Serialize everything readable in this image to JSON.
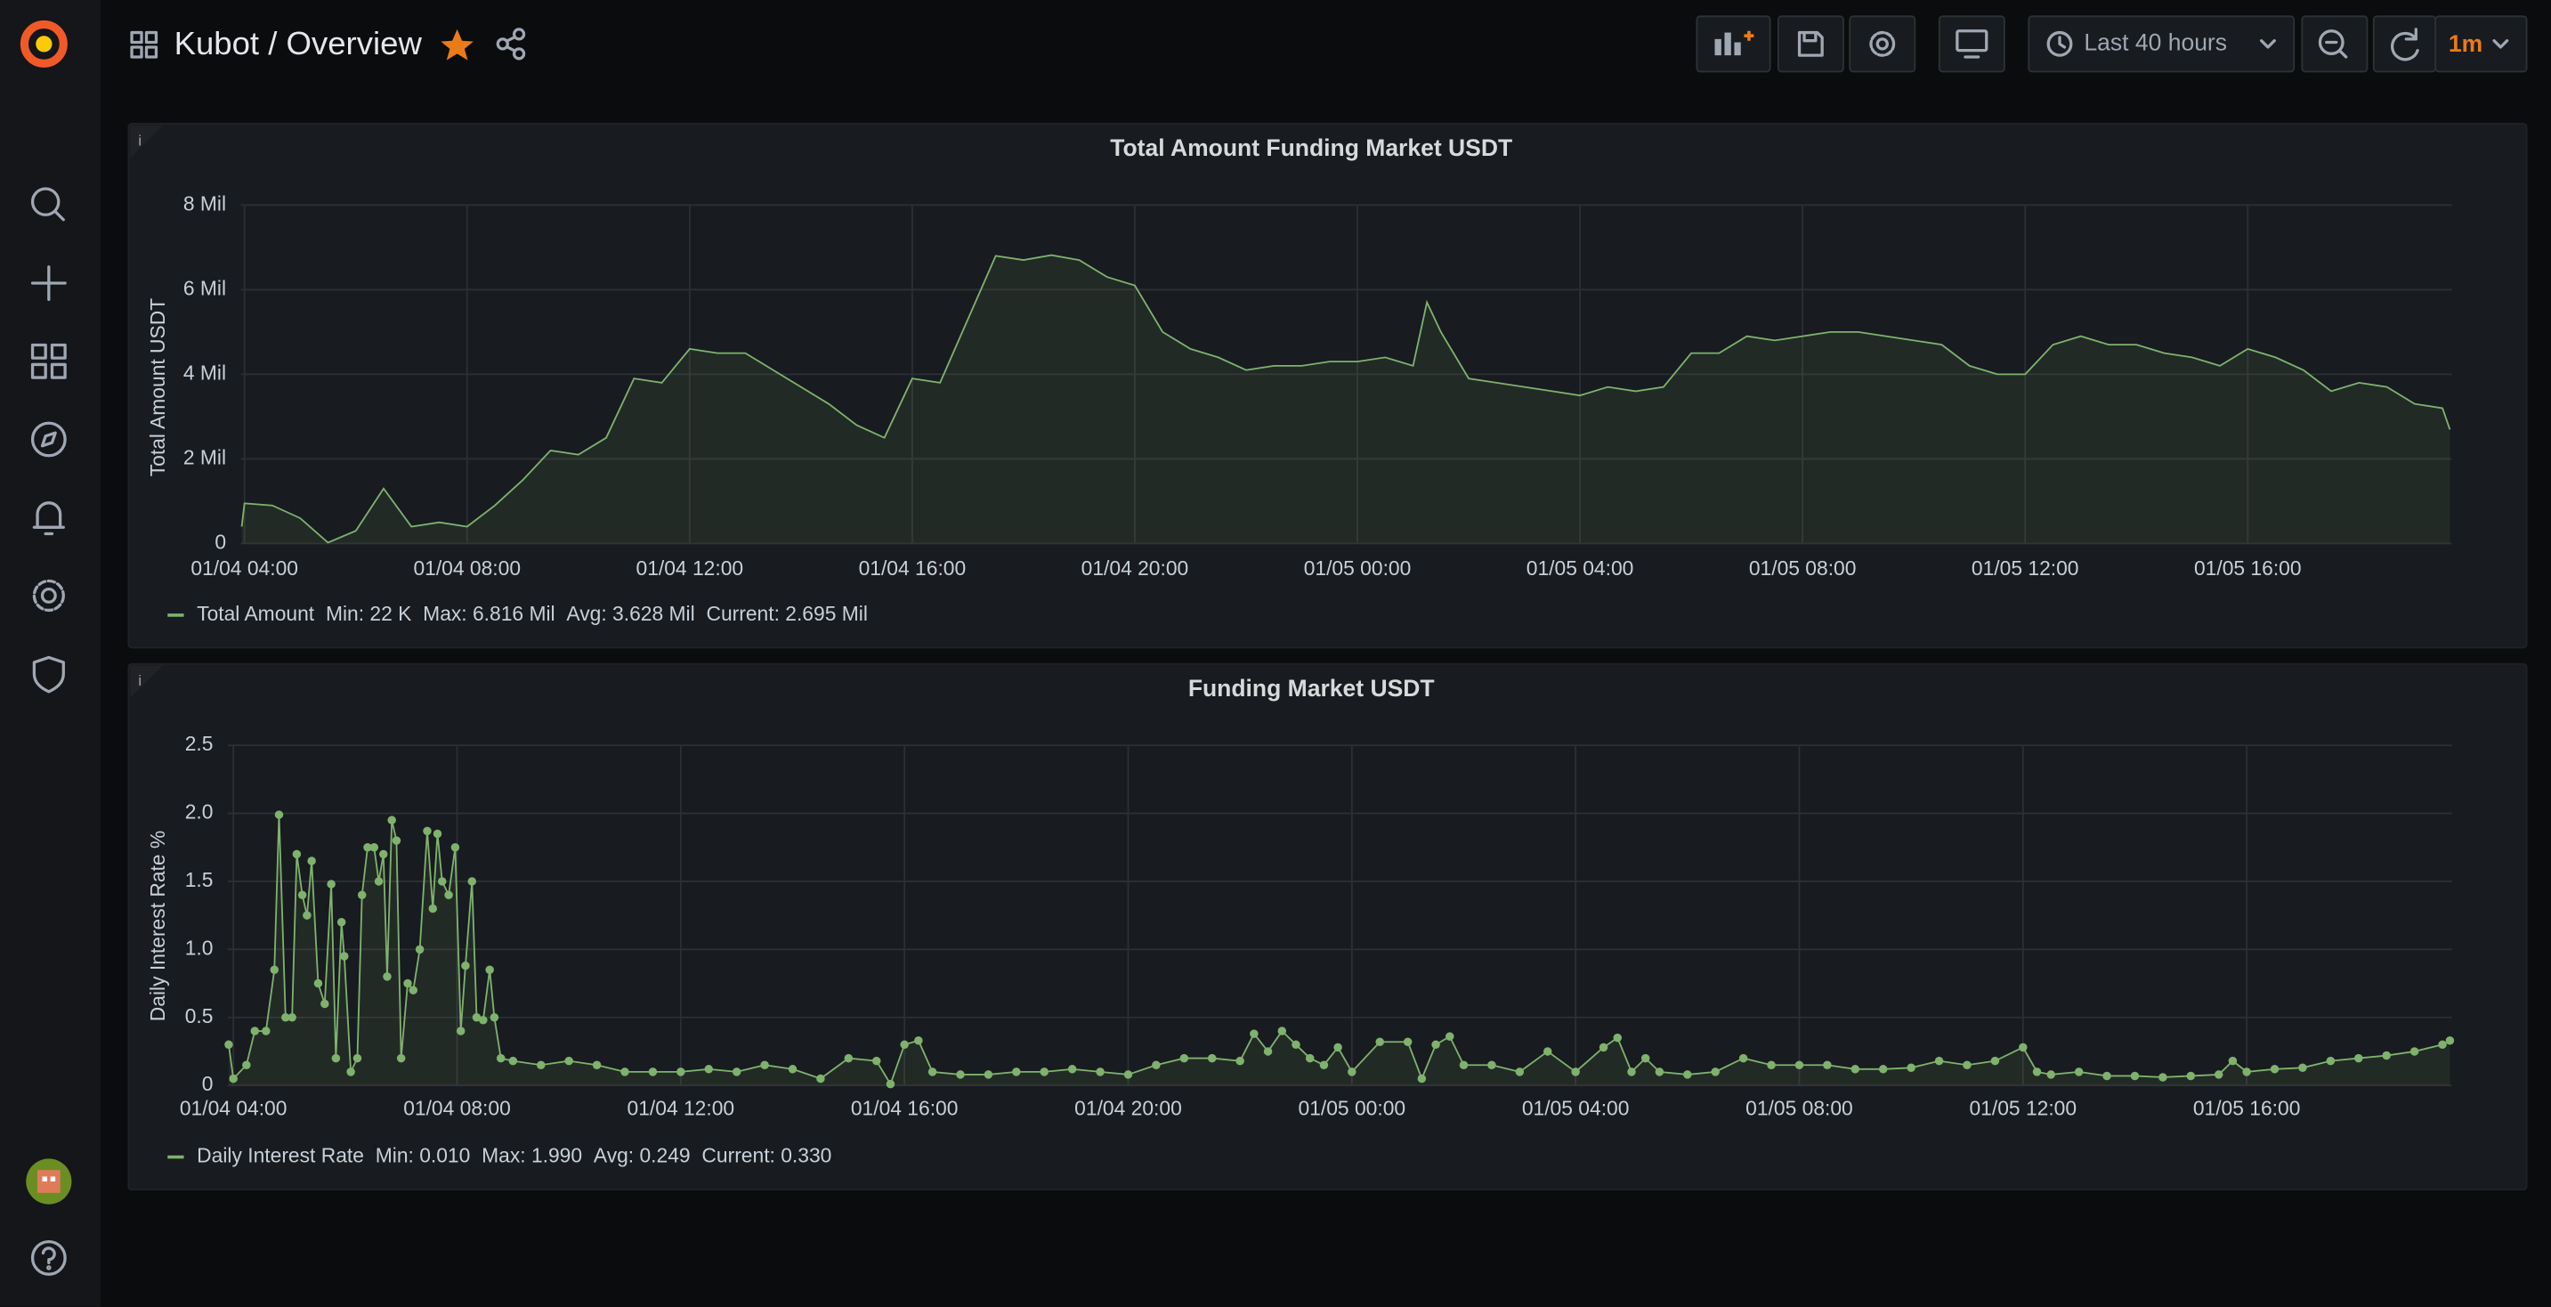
{
  "header": {
    "title": "Kubot / Overview",
    "time_range": "Last 40 hours",
    "refresh": "1m"
  },
  "chart_data": [
    {
      "type": "line",
      "title": "Total Amount Funding Market USDT",
      "y_label": "Total Amount USDT",
      "x": [
        "01/04 03:57",
        "01/04 04:00",
        "01/04 04:30",
        "01/04 05:00",
        "01/04 05:30",
        "01/04 06:00",
        "01/04 06:30",
        "01/04 07:00",
        "01/04 07:30",
        "01/04 08:00",
        "01/04 08:30",
        "01/04 09:00",
        "01/04 09:30",
        "01/04 10:00",
        "01/04 10:30",
        "01/04 11:00",
        "01/04 11:30",
        "01/04 12:00",
        "01/04 12:30",
        "01/04 13:00",
        "01/04 13:30",
        "01/04 14:00",
        "01/04 14:30",
        "01/04 15:00",
        "01/04 15:30",
        "01/04 16:00",
        "01/04 16:30",
        "01/04 17:00",
        "01/04 17:30",
        "01/04 18:00",
        "01/04 18:30",
        "01/04 19:00",
        "01/04 19:30",
        "01/04 20:00",
        "01/04 20:30",
        "01/04 21:00",
        "01/04 21:30",
        "01/04 22:00",
        "01/04 22:30",
        "01/04 23:00",
        "01/04 23:30",
        "01/05 00:00",
        "01/05 00:30",
        "01/05 01:00",
        "01/05 01:15",
        "01/05 01:30",
        "01/05 02:00",
        "01/05 02:30",
        "01/05 03:00",
        "01/05 03:30",
        "01/05 04:00",
        "01/05 04:30",
        "01/05 05:00",
        "01/05 05:30",
        "01/05 06:00",
        "01/05 06:30",
        "01/05 07:00",
        "01/05 07:30",
        "01/05 08:00",
        "01/05 08:30",
        "01/05 09:00",
        "01/05 09:30",
        "01/05 10:00",
        "01/05 10:30",
        "01/05 11:00",
        "01/05 11:30",
        "01/05 12:00",
        "01/05 12:30",
        "01/05 13:00",
        "01/05 13:30",
        "01/05 14:00",
        "01/05 14:30",
        "01/05 15:00",
        "01/05 15:30",
        "01/05 16:00",
        "01/05 16:30",
        "01/05 17:00",
        "01/05 17:30",
        "01/05 18:00",
        "01/05 18:30",
        "01/05 19:00",
        "01/05 19:30",
        "01/05 19:38"
      ],
      "series": [
        {
          "name": "Total Amount",
          "color": "#7eb26d",
          "values": [
            400000,
            950000,
            900000,
            600000,
            22000,
            300000,
            1300000,
            400000,
            500000,
            400000,
            900000,
            1500000,
            2200000,
            2100000,
            2500000,
            3900000,
            3800000,
            4600000,
            4500000,
            4500000,
            4100000,
            3700000,
            3300000,
            2800000,
            2500000,
            3900000,
            3800000,
            5300000,
            6800000,
            6700000,
            6816000,
            6700000,
            6300000,
            6100000,
            5000000,
            4600000,
            4400000,
            4100000,
            4200000,
            4200000,
            4300000,
            4300000,
            4400000,
            4200000,
            5700000,
            5000000,
            3900000,
            3800000,
            3700000,
            3600000,
            3500000,
            3700000,
            3600000,
            3700000,
            4500000,
            4500000,
            4900000,
            4800000,
            4900000,
            5000000,
            5000000,
            4900000,
            4800000,
            4700000,
            4200000,
            4000000,
            4000000,
            4700000,
            4900000,
            4700000,
            4700000,
            4500000,
            4400000,
            4200000,
            4600000,
            4400000,
            4100000,
            3600000,
            3800000,
            3700000,
            3300000,
            3200000,
            2695000
          ]
        }
      ],
      "legend_stats": [
        "Min: 22 K",
        "Max: 6.816 Mil",
        "Avg: 3.628 Mil",
        "Current: 2.695 Mil"
      ],
      "xlim": [
        "01/04 03:56",
        "01/05 19:40"
      ],
      "xticks": [
        "01/04 04:00",
        "01/04 08:00",
        "01/04 12:00",
        "01/04 16:00",
        "01/04 20:00",
        "01/05 00:00",
        "01/05 04:00",
        "01/05 08:00",
        "01/05 12:00",
        "01/05 16:00"
      ],
      "ylim": [
        0,
        8000000
      ],
      "yticks": [
        0,
        {
          "value": 2000000,
          "label": "2 Mil"
        },
        {
          "value": 4000000,
          "label": "4 Mil"
        },
        {
          "value": 6000000,
          "label": "6 Mil"
        },
        {
          "value": 8000000,
          "label": "8 Mil"
        }
      ],
      "grid": true,
      "fill": true,
      "points": false
    },
    {
      "type": "line",
      "title": "Funding Market USDT",
      "y_label": "Daily Interest Rate %",
      "x": [
        "01/04 03:55",
        "01/04 04:00",
        "01/04 04:14",
        "01/04 04:23",
        "01/04 04:35",
        "01/04 04:44",
        "01/04 04:49",
        "01/04 04:56",
        "01/04 05:03",
        "01/04 05:08",
        "01/04 05:14",
        "01/04 05:19",
        "01/04 05:24",
        "01/04 05:31",
        "01/04 05:38",
        "01/04 05:45",
        "01/04 05:50",
        "01/04 05:56",
        "01/04 05:59",
        "01/04 06:06",
        "01/04 06:13",
        "01/04 06:18",
        "01/04 06:24",
        "01/04 06:31",
        "01/04 06:36",
        "01/04 06:41",
        "01/04 06:45",
        "01/04 06:50",
        "01/04 06:55",
        "01/04 07:00",
        "01/04 07:07",
        "01/04 07:13",
        "01/04 07:20",
        "01/04 07:28",
        "01/04 07:34",
        "01/04 07:39",
        "01/04 07:44",
        "01/04 07:51",
        "01/04 07:58",
        "01/04 08:04",
        "01/04 08:09",
        "01/04 08:16",
        "01/04 08:21",
        "01/04 08:28",
        "01/04 08:35",
        "01/04 08:40",
        "01/04 08:47",
        "01/04 09:00",
        "01/04 09:30",
        "01/04 10:00",
        "01/04 10:30",
        "01/04 11:00",
        "01/04 11:30",
        "01/04 12:00",
        "01/04 12:30",
        "01/04 13:00",
        "01/04 13:30",
        "01/04 14:00",
        "01/04 14:30",
        "01/04 15:00",
        "01/04 15:30",
        "01/04 15:45",
        "01/04 16:00",
        "01/04 16:15",
        "01/04 16:30",
        "01/04 17:00",
        "01/04 17:30",
        "01/04 18:00",
        "01/04 18:30",
        "01/04 19:00",
        "01/04 19:30",
        "01/04 20:00",
        "01/04 20:30",
        "01/04 21:00",
        "01/04 21:30",
        "01/04 22:00",
        "01/04 22:15",
        "01/04 22:30",
        "01/04 22:45",
        "01/04 23:00",
        "01/04 23:15",
        "01/04 23:30",
        "01/04 23:45",
        "01/05 00:00",
        "01/05 00:30",
        "01/05 01:00",
        "01/05 01:15",
        "01/05 01:30",
        "01/05 01:45",
        "01/05 02:00",
        "01/05 02:30",
        "01/05 03:00",
        "01/05 03:30",
        "01/05 04:00",
        "01/05 04:30",
        "01/05 04:45",
        "01/05 05:00",
        "01/05 05:15",
        "01/05 05:30",
        "01/05 06:00",
        "01/05 06:30",
        "01/05 07:00",
        "01/05 07:30",
        "01/05 08:00",
        "01/05 08:30",
        "01/05 09:00",
        "01/05 09:30",
        "01/05 10:00",
        "01/05 10:30",
        "01/05 11:00",
        "01/05 11:30",
        "01/05 12:00",
        "01/05 12:15",
        "01/05 12:30",
        "01/05 13:00",
        "01/05 13:30",
        "01/05 14:00",
        "01/05 14:30",
        "01/05 15:00",
        "01/05 15:30",
        "01/05 15:45",
        "01/05 16:00",
        "01/05 16:30",
        "01/05 17:00",
        "01/05 17:30",
        "01/05 18:00",
        "01/05 18:30",
        "01/05 19:00",
        "01/05 19:30",
        "01/05 19:38"
      ],
      "series": [
        {
          "name": "Daily Interest Rate",
          "color": "#7eb26d",
          "values": [
            0.3,
            0.05,
            0.15,
            0.4,
            0.4,
            0.85,
            1.99,
            0.5,
            0.5,
            1.7,
            1.4,
            1.25,
            1.65,
            0.75,
            0.6,
            1.48,
            0.2,
            1.2,
            0.95,
            0.1,
            0.2,
            1.4,
            1.75,
            1.75,
            1.5,
            1.7,
            0.8,
            1.95,
            1.8,
            0.2,
            0.75,
            0.7,
            1.0,
            1.87,
            1.3,
            1.85,
            1.5,
            1.4,
            1.75,
            0.4,
            0.88,
            1.5,
            0.5,
            0.48,
            0.85,
            0.5,
            0.2,
            0.18,
            0.15,
            0.18,
            0.15,
            0.1,
            0.1,
            0.1,
            0.12,
            0.1,
            0.15,
            0.12,
            0.05,
            0.2,
            0.18,
            0.01,
            0.3,
            0.33,
            0.1,
            0.08,
            0.08,
            0.1,
            0.1,
            0.12,
            0.1,
            0.08,
            0.15,
            0.2,
            0.2,
            0.18,
            0.38,
            0.25,
            0.4,
            0.3,
            0.2,
            0.15,
            0.28,
            0.1,
            0.32,
            0.32,
            0.05,
            0.3,
            0.36,
            0.15,
            0.15,
            0.1,
            0.25,
            0.1,
            0.28,
            0.35,
            0.1,
            0.2,
            0.1,
            0.08,
            0.1,
            0.2,
            0.15,
            0.15,
            0.15,
            0.12,
            0.12,
            0.13,
            0.18,
            0.15,
            0.18,
            0.28,
            0.1,
            0.08,
            0.1,
            0.07,
            0.07,
            0.06,
            0.07,
            0.08,
            0.18,
            0.1,
            0.12,
            0.13,
            0.18,
            0.2,
            0.22,
            0.25,
            0.3,
            0.33
          ]
        }
      ],
      "legend_stats": [
        "Min: 0.010",
        "Max: 1.990",
        "Avg: 0.249",
        "Current: 0.330"
      ],
      "xlim": [
        "01/04 03:54",
        "01/05 19:40"
      ],
      "xticks": [
        "01/04 04:00",
        "01/04 08:00",
        "01/04 12:00",
        "01/04 16:00",
        "01/04 20:00",
        "01/05 00:00",
        "01/05 04:00",
        "01/05 08:00",
        "01/05 12:00",
        "01/05 16:00"
      ],
      "ylim": [
        0,
        2.5
      ],
      "yticks": [
        0,
        0.5,
        {
          "value": 1,
          "label": "1.0"
        },
        1.5,
        {
          "value": 2,
          "label": "2.0"
        },
        2.5
      ],
      "grid": true,
      "fill": true,
      "points": true
    }
  ]
}
